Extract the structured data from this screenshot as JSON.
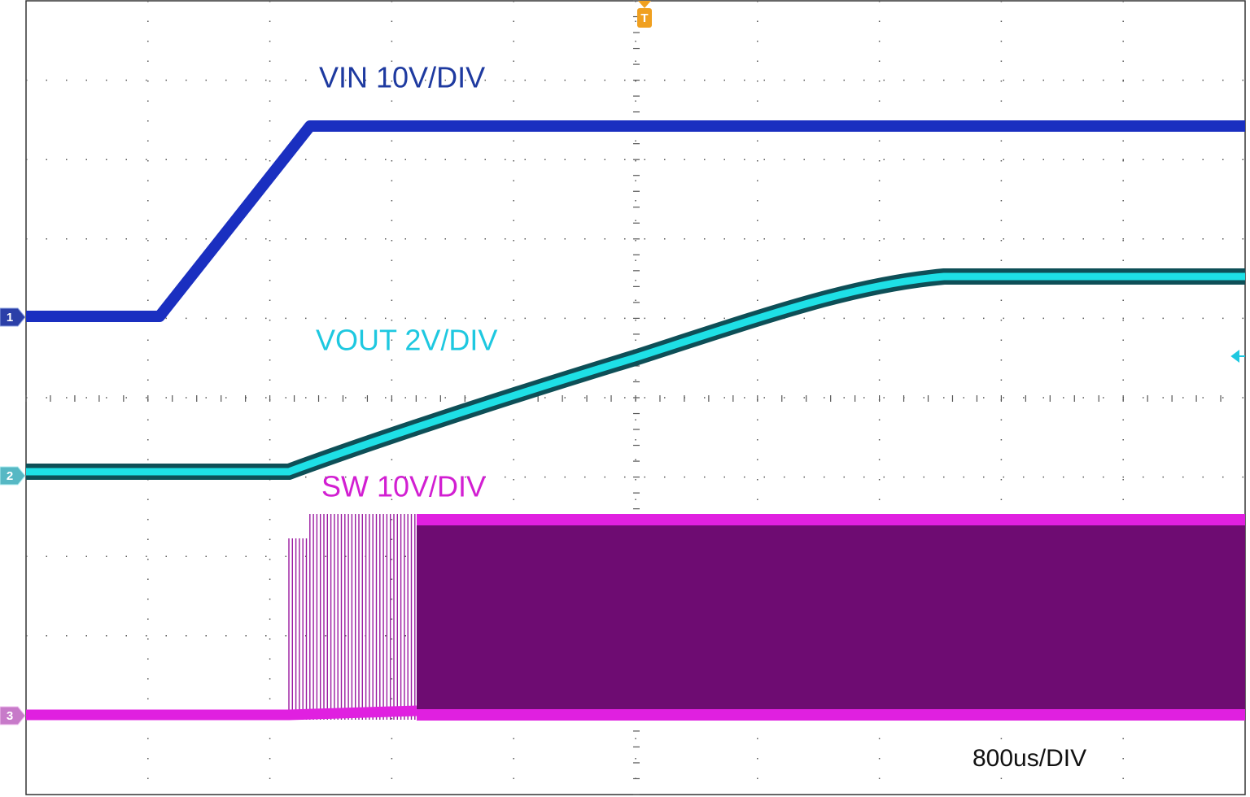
{
  "traces": [
    {
      "label": "VIN 10V/DIV",
      "marker": "1"
    },
    {
      "label": "VOUT 2V/DIV",
      "marker": "2"
    },
    {
      "label": "SW 10V/DIV",
      "marker": "3"
    }
  ],
  "trigger_marker": "T",
  "timebase": "800us/DIV"
}
